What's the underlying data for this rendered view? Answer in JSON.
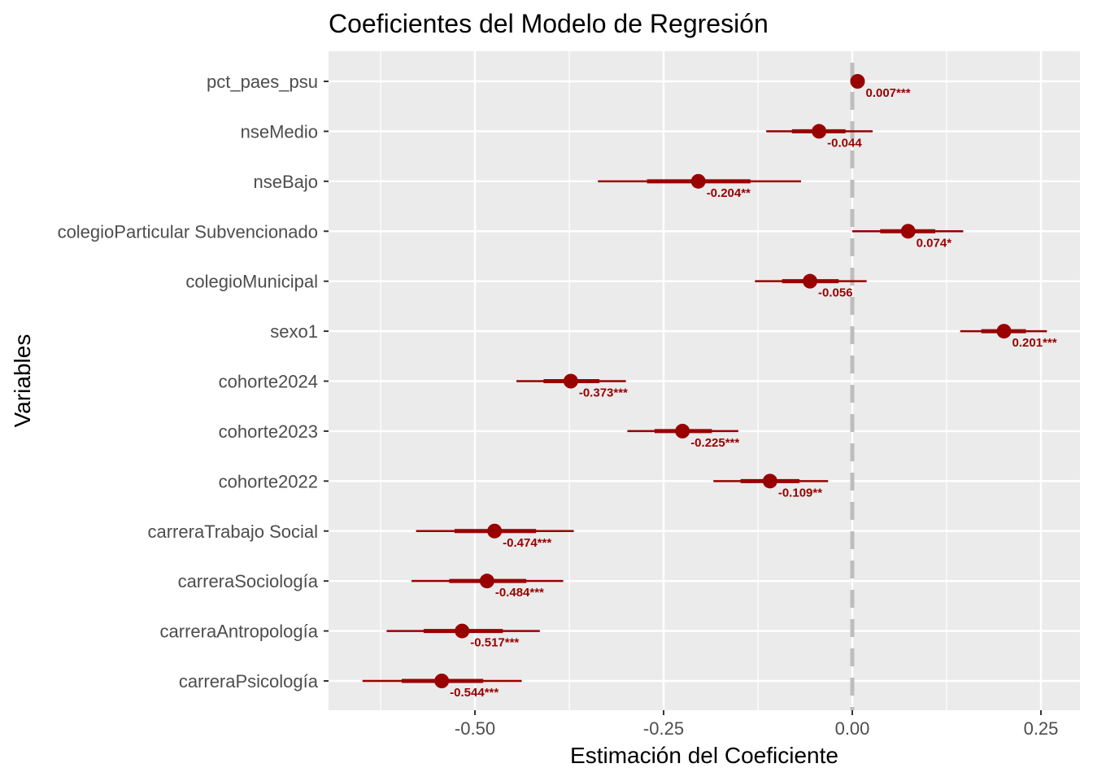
{
  "chart_data": {
    "type": "coefficient-plot",
    "title": "Coeficientes del Modelo de Regresión",
    "xlabel": "Estimación del Coeficiente",
    "ylabel": "Variables",
    "xlim": [
      -0.69,
      0.3
    ],
    "xticks": [
      -0.5,
      -0.25,
      0.0,
      0.25
    ],
    "xtick_labels": [
      "-0.50",
      "-0.25",
      "0.00",
      "0.25"
    ],
    "reference_line": 0,
    "grid": true,
    "colors": {
      "point": "#990000",
      "panel": "#ebebeb",
      "refline": "#bdbdbd"
    },
    "rows": [
      {
        "variable": "pct_paes_psu",
        "estimate": 0.007,
        "label": "0.007***",
        "ci_outer": [
          0.005,
          0.009
        ],
        "ci_inner": [
          0.006,
          0.008
        ]
      },
      {
        "variable": "nseMedio",
        "estimate": -0.044,
        "label": "-0.044",
        "ci_outer": [
          -0.114,
          0.027
        ],
        "ci_inner": [
          -0.08,
          -0.009
        ]
      },
      {
        "variable": "nseBajo",
        "estimate": -0.204,
        "label": "-0.204**",
        "ci_outer": [
          -0.337,
          -0.068
        ],
        "ci_inner": [
          -0.272,
          -0.135
        ]
      },
      {
        "variable": "colegioParticular Subvencionado",
        "estimate": 0.074,
        "label": "0.074*",
        "ci_outer": [
          0.0,
          0.147
        ],
        "ci_inner": [
          0.037,
          0.11
        ]
      },
      {
        "variable": "colegioMunicipal",
        "estimate": -0.056,
        "label": "-0.056",
        "ci_outer": [
          -0.129,
          0.019
        ],
        "ci_inner": [
          -0.093,
          -0.018
        ]
      },
      {
        "variable": "sexo1",
        "estimate": 0.201,
        "label": "0.201***",
        "ci_outer": [
          0.143,
          0.258
        ],
        "ci_inner": [
          0.171,
          0.23
        ]
      },
      {
        "variable": "cohorte2024",
        "estimate": -0.373,
        "label": "-0.373***",
        "ci_outer": [
          -0.445,
          -0.3
        ],
        "ci_inner": [
          -0.409,
          -0.335
        ]
      },
      {
        "variable": "cohorte2023",
        "estimate": -0.225,
        "label": "-0.225***",
        "ci_outer": [
          -0.298,
          -0.151
        ],
        "ci_inner": [
          -0.262,
          -0.186
        ]
      },
      {
        "variable": "cohorte2022",
        "estimate": -0.109,
        "label": "-0.109**",
        "ci_outer": [
          -0.184,
          -0.032
        ],
        "ci_inner": [
          -0.148,
          -0.07
        ]
      },
      {
        "variable": "carreraTrabajo Social",
        "estimate": -0.474,
        "label": "-0.474***",
        "ci_outer": [
          -0.578,
          -0.369
        ],
        "ci_inner": [
          -0.527,
          -0.419
        ]
      },
      {
        "variable": "carreraSociología",
        "estimate": -0.484,
        "label": "-0.484***",
        "ci_outer": [
          -0.584,
          -0.383
        ],
        "ci_inner": [
          -0.534,
          -0.432
        ]
      },
      {
        "variable": "carreraAntropología",
        "estimate": -0.517,
        "label": "-0.517***",
        "ci_outer": [
          -0.617,
          -0.414
        ],
        "ci_inner": [
          -0.568,
          -0.463
        ]
      },
      {
        "variable": "carreraPsicología",
        "estimate": -0.544,
        "label": "-0.544***",
        "ci_outer": [
          -0.649,
          -0.438
        ],
        "ci_inner": [
          -0.597,
          -0.489
        ]
      }
    ]
  }
}
